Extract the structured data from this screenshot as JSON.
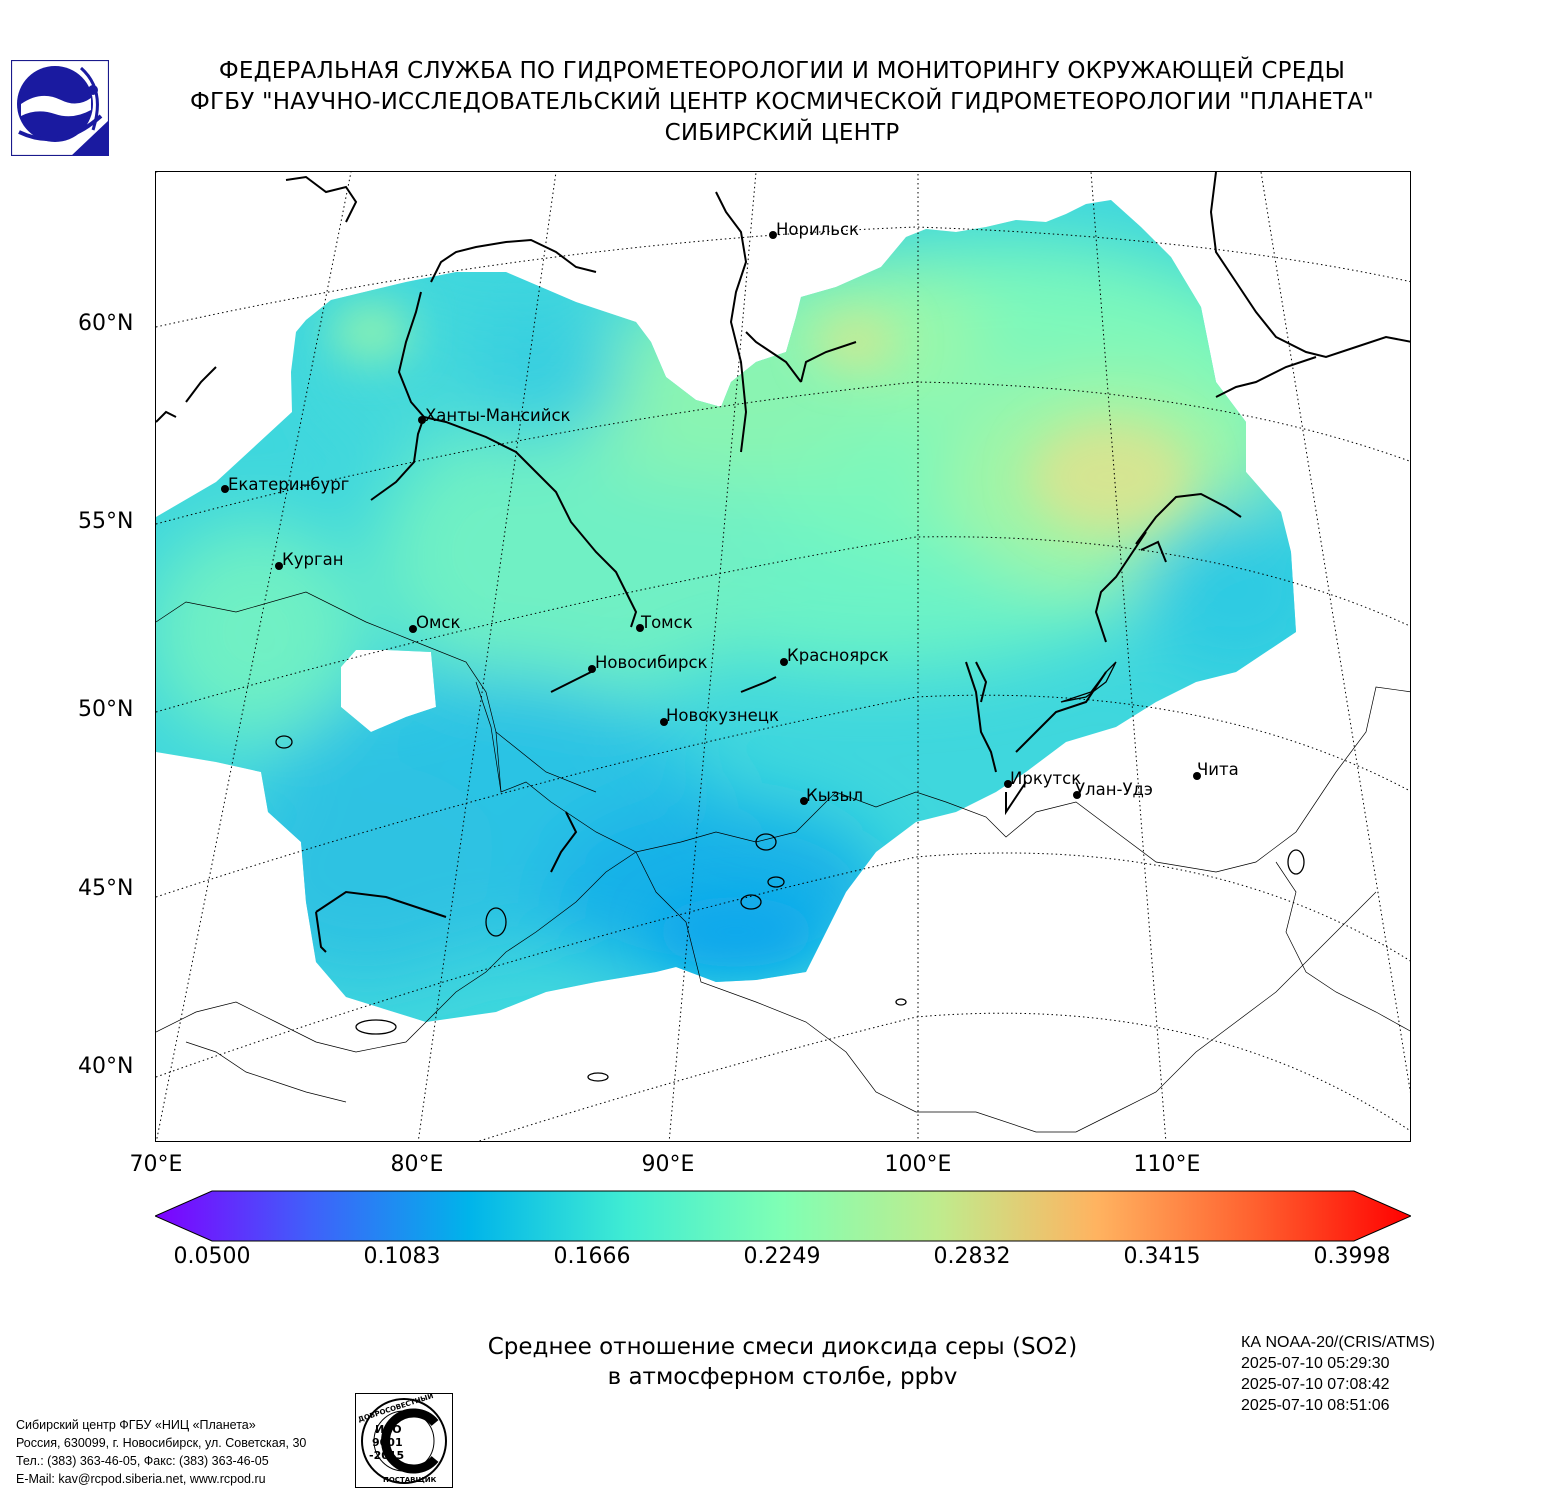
{
  "header": {
    "line1": "ФЕДЕРАЛЬНАЯ СЛУЖБА ПО ГИДРОМЕТЕОРОЛОГИИ И МОНИТОРИНГУ ОКРУЖАЮЩЕЙ СРЕДЫ",
    "line2": "ФГБУ \"НАУЧНО-ИССЛЕДОВАТЕЛЬСКИЙ ЦЕНТР КОСМИЧЕСКОЙ ГИДРОМЕТЕОРОЛОГИИ \"ПЛАНЕТА\"",
    "line3": "СИБИРСКИЙ ЦЕНТР"
  },
  "logo_icon": "planeta-logo-icon",
  "map": {
    "lat_labels": [
      "60°N",
      "55°N",
      "50°N",
      "45°N",
      "40°N"
    ],
    "lon_labels": [
      "70°E",
      "80°E",
      "90°E",
      "100°E",
      "110°E"
    ],
    "cities": [
      {
        "name": "Норильск"
      },
      {
        "name": "Ханты-Мансийск"
      },
      {
        "name": "Екатеринбург"
      },
      {
        "name": "Курган"
      },
      {
        "name": "Омск"
      },
      {
        "name": "Томск"
      },
      {
        "name": "Новосибирск"
      },
      {
        "name": "Красноярск"
      },
      {
        "name": "Новокузнецк"
      },
      {
        "name": "Иркутск"
      },
      {
        "name": "Улан-Удэ"
      },
      {
        "name": "Чита"
      },
      {
        "name": "Кызыл"
      }
    ]
  },
  "colorbar": {
    "ticks": [
      "0.0500",
      "0.1083",
      "0.1666",
      "0.2249",
      "0.2832",
      "0.3415",
      "0.3998"
    ],
    "colors": [
      "#7f00ff",
      "#3f61fa",
      "#00b4ea",
      "#40ecd3",
      "#80ffb4",
      "#c0eb8d",
      "#ffb360",
      "#ff612f",
      "#ff0000"
    ]
  },
  "caption": {
    "line1": "Среднее отношение смеси диоксида серы (SO2)",
    "line2": "в атмосферном столбе, ppbv"
  },
  "satellite": {
    "name": "КА NOAA-20/(CRIS/ATMS)",
    "times": [
      "2025-07-10 05:29:30",
      "2025-07-10 07:08:42",
      "2025-07-10 08:51:06"
    ]
  },
  "footer": {
    "lines": [
      "Сибирский центр ФГБУ «НИЦ «Планета»",
      "Россия, 630099, г. Новосибирск, ул. Советская, 30",
      "Тел.: (383) 363-46-05, Факс: (383) 363-46-05",
      "E-Mail: kav@rcpod.siberia.net, www.rcpod.ru"
    ]
  },
  "iso_badge": {
    "top": "ДОБРОСОВЕСТНЫЙ",
    "code1": "ИСО",
    "code2": "9001",
    "code3": "-2015",
    "bottom": "ПОСТАВЩИК"
  }
}
